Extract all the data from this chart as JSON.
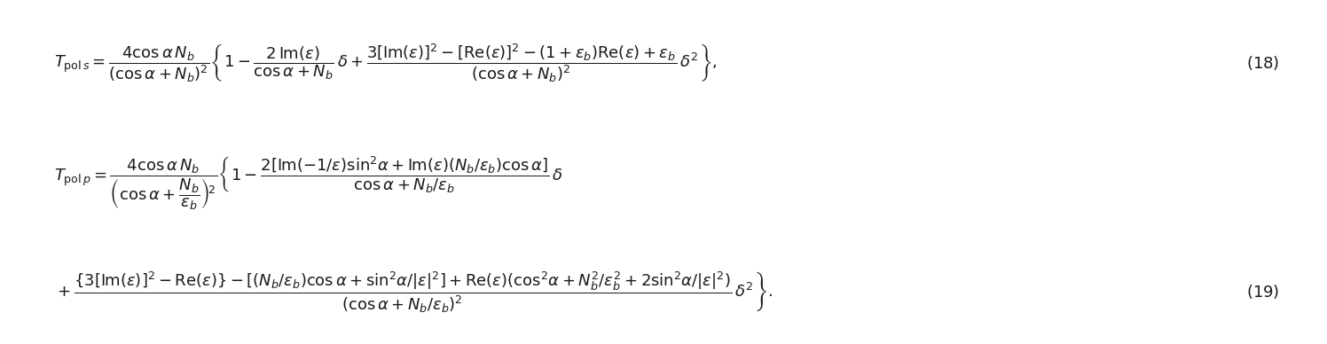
{
  "eq18": "T_{\\mathrm{pol}\\,s}=\\frac{4\\cos\\alpha N_b}{(\\cos\\alpha+N_b)^2}\\left\\{1-\\frac{2\\,\\mathrm{Im}(\\epsilon)}{\\cos\\alpha+N_b}\\,\\delta+\\frac{3[\\mathrm{Im}(\\epsilon)]^2-[\\mathrm{Re}(\\epsilon)]^2-(1+\\epsilon_b)\\mathrm{Re}(\\epsilon)+\\epsilon_b}{(\\cos\\alpha+N_b)^2}\\,\\delta^2\\right\\},",
  "eq19_line1": "T_{\\mathrm{pol}\\,p}=\\frac{4\\cos\\alpha N_b}{\\left(\\cos\\alpha+\\dfrac{N_b}{\\epsilon_b}\\right)^2}\\left\\{1-\\frac{2[\\mathrm{Im}(-1/\\epsilon)\\sin^2\\alpha+\\mathrm{Im}(\\epsilon)(N_b/\\epsilon_b)\\cos\\alpha]}{\\cos\\alpha+N_b/\\epsilon_b}\\,\\delta\\right.",
  "eq19_line2": "\\left.+\\frac{\\{3[\\mathrm{Im}(\\epsilon)]^2-\\mathrm{Re}(\\epsilon)\\}-[(N_b/\\epsilon_b)\\cos\\alpha+\\sin^2\\alpha/|\\epsilon|^2]+\\mathrm{Re}(\\epsilon)(\\cos^2\\alpha+N_b^2/\\epsilon_b^2+2\\sin^2\\alpha/|\\epsilon|^2)}{(\\cos\\alpha+N_b/\\epsilon_b)^2}\\,\\delta^2\\right\\}.",
  "label18": "(18)",
  "label19": "(19)",
  "figsize": [
    14.96,
    3.88
  ],
  "dpi": 100,
  "fontsize": 13,
  "background": "#ffffff",
  "text_color": "#1a1a1a"
}
